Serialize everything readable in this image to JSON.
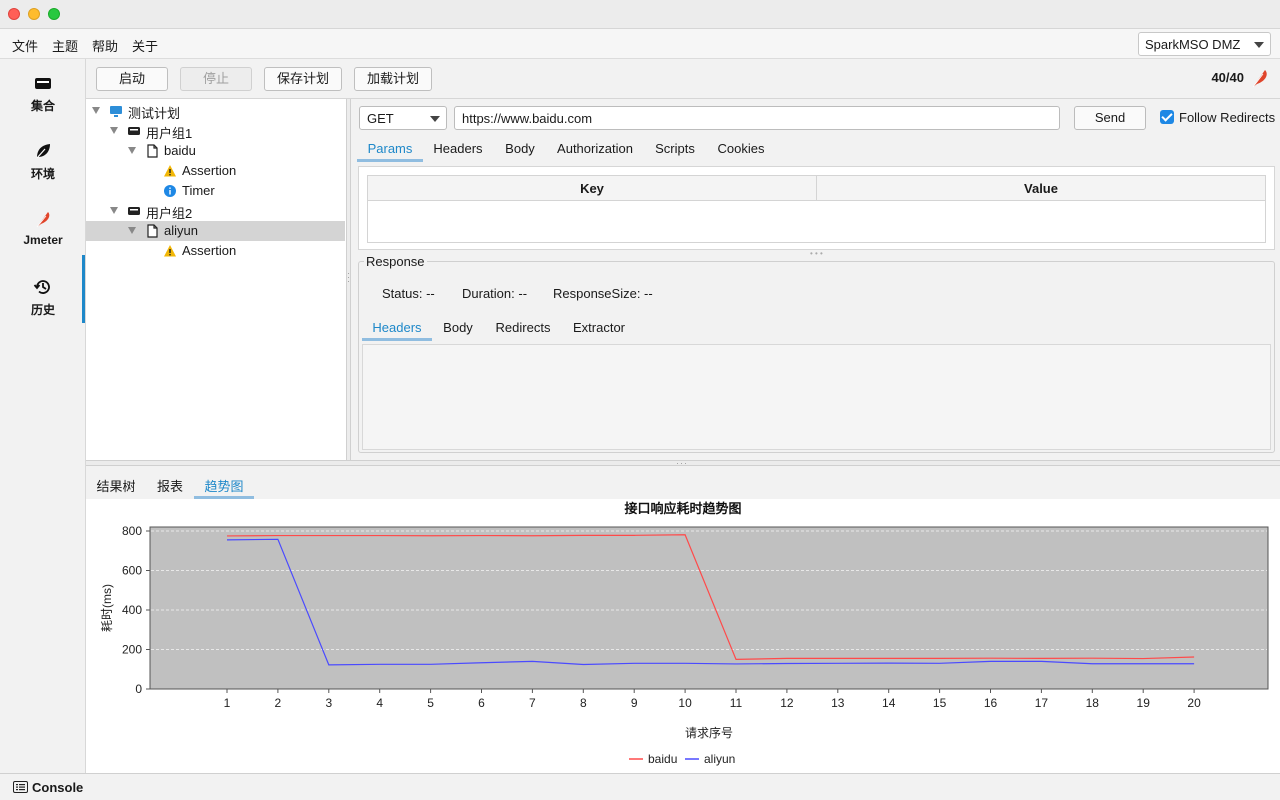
{
  "menubar": {
    "items": [
      "文件",
      "主题",
      "帮助",
      "关于"
    ],
    "env_select": "SparkMSO DMZ"
  },
  "nav": {
    "items": [
      {
        "label": "集合",
        "icon": "collection-icon"
      },
      {
        "label": "环境",
        "icon": "leaf-icon"
      },
      {
        "label": "Jmeter",
        "icon": "feather-icon"
      },
      {
        "label": "历史",
        "icon": "history-icon"
      }
    ],
    "active_index": 2
  },
  "toolbar": {
    "start_label": "启动",
    "stop_label": "停止",
    "save_plan_label": "保存计划",
    "load_plan_label": "加载计划",
    "counter": "40/40"
  },
  "tree": {
    "root": "测试计划",
    "group1": "用户组1",
    "group1_request": "baidu",
    "group1_assertion": "Assertion",
    "group1_timer": "Timer",
    "group2": "用户组2",
    "group2_request": "aliyun",
    "group2_assertion": "Assertion"
  },
  "request": {
    "method": "GET",
    "url": "https://www.baidu.com",
    "send_label": "Send",
    "follow_redirects_label": "Follow Redirects",
    "follow_redirects_checked": true,
    "tabs": [
      "Params",
      "Headers",
      "Body",
      "Authorization",
      "Scripts",
      "Cookies"
    ],
    "active_tab": "Params",
    "params_columns": [
      "Key",
      "Value"
    ]
  },
  "response": {
    "legend": "Response",
    "status": "Status: --",
    "duration": "Duration: --",
    "size": "ResponseSize: --",
    "tabs": [
      "Headers",
      "Body",
      "Redirects",
      "Extractor"
    ],
    "active_tab": "Headers"
  },
  "bottom_tabs": {
    "items": [
      "结果树",
      "报表",
      "趋势图"
    ],
    "active": "趋势图"
  },
  "chart_data": {
    "type": "line",
    "title": "接口响应耗时趋势图",
    "xlabel": "请求序号",
    "ylabel": "耗时(ms)",
    "x": [
      1,
      2,
      3,
      4,
      5,
      6,
      7,
      8,
      9,
      10,
      11,
      12,
      13,
      14,
      15,
      16,
      17,
      18,
      19,
      20
    ],
    "ylim": [
      0,
      800
    ],
    "yticks": [
      0,
      200,
      400,
      600,
      800
    ],
    "grid": true,
    "legend_position": "bottom",
    "series": [
      {
        "name": "baidu",
        "color": "#ff4a4a",
        "values": [
          775,
          777,
          777,
          777,
          776,
          777,
          776,
          778,
          778,
          781,
          150,
          155,
          155,
          155,
          155,
          156,
          155,
          156,
          154,
          162
        ]
      },
      {
        "name": "aliyun",
        "color": "#4a4aff",
        "values": [
          755,
          758,
          122,
          125,
          125,
          133,
          140,
          124,
          130,
          130,
          127,
          129,
          130,
          131,
          130,
          140,
          140,
          128,
          128,
          128
        ]
      }
    ]
  },
  "console": {
    "label": "Console"
  }
}
